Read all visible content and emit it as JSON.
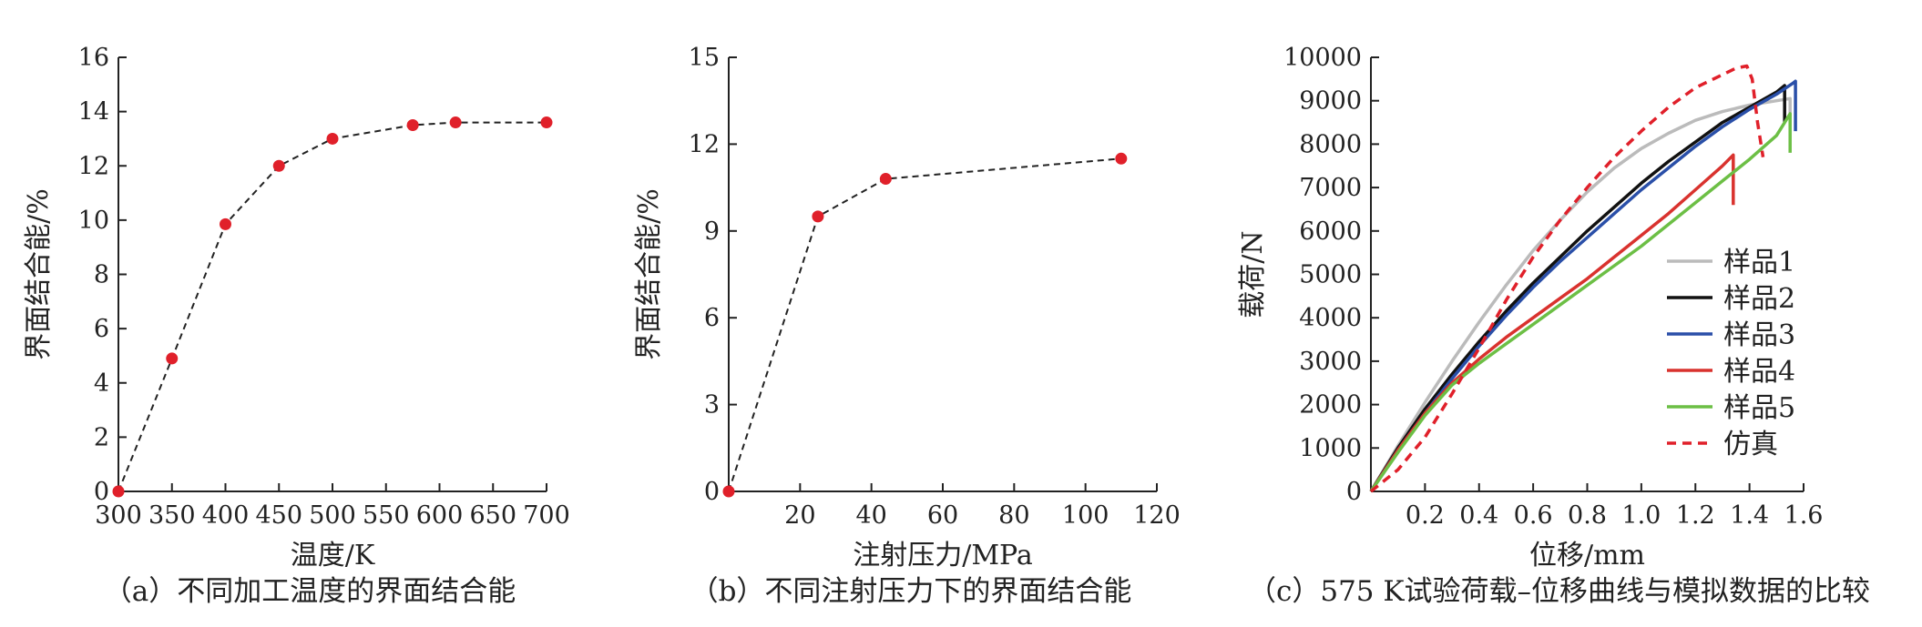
{
  "chart_data": [
    {
      "type": "line",
      "caption": "（a）不同加工温度的界面结合能",
      "xlabel": "温度/K",
      "ylabel": "界面结合能/%",
      "xlim": [
        300,
        700
      ],
      "ylim": [
        0,
        16
      ],
      "xticks": [
        "300",
        "350",
        "400",
        "450",
        "500",
        "550",
        "600",
        "650",
        "700"
      ],
      "yticks": [
        "0",
        "2",
        "4",
        "6",
        "8",
        "10",
        "12",
        "14",
        "16"
      ],
      "grid": false,
      "style": "dashed line with red circular markers",
      "line_color": "#222222",
      "marker_color": "#e0202a",
      "x": [
        300,
        350,
        400,
        450,
        500,
        575,
        615,
        700
      ],
      "y": [
        0,
        4.9,
        9.85,
        12.0,
        13.0,
        13.5,
        13.6,
        13.6
      ]
    },
    {
      "type": "line",
      "caption": "（b）不同注射压力下的界面结合能",
      "xlabel": "注射压力/MPa",
      "ylabel": "界面结合能/%",
      "xlim": [
        0,
        120
      ],
      "ylim": [
        0,
        15
      ],
      "xticks": [
        "20",
        "40",
        "60",
        "80",
        "100",
        "120"
      ],
      "yticks": [
        "0",
        "3",
        "6",
        "9",
        "12",
        "15"
      ],
      "grid": false,
      "style": "dashed line with red circular markers",
      "line_color": "#222222",
      "marker_color": "#e0202a",
      "x": [
        0,
        25,
        44,
        110
      ],
      "y": [
        0,
        9.5,
        10.8,
        11.5
      ]
    },
    {
      "type": "line",
      "caption": "（c）575 K试验荷载–位移曲线与模拟数据的比较",
      "xlabel": "位移/mm",
      "ylabel": "载荷/N",
      "xlim": [
        0,
        1.6
      ],
      "ylim": [
        0,
        10000
      ],
      "xticks": [
        "0.2",
        "0.4",
        "0.6",
        "0.8",
        "1.0",
        "1.2",
        "1.4",
        "1.6"
      ],
      "yticks": [
        "0",
        "1000",
        "2000",
        "3000",
        "4000",
        "5000",
        "6000",
        "7000",
        "8000",
        "9000",
        "10000"
      ],
      "grid": false,
      "legend_position": "right",
      "series": [
        {
          "name": "样品1",
          "color": "#bbbbbb",
          "dash": false,
          "x": [
            0,
            0.1,
            0.2,
            0.3,
            0.4,
            0.5,
            0.6,
            0.7,
            0.8,
            0.9,
            1.0,
            1.1,
            1.2,
            1.3,
            1.4,
            1.5,
            1.55,
            1.55
          ],
          "y": [
            0,
            1050,
            2050,
            3000,
            3900,
            4750,
            5550,
            6250,
            6900,
            7450,
            7900,
            8250,
            8550,
            8750,
            8900,
            9000,
            9050,
            8600
          ]
        },
        {
          "name": "样品2",
          "color": "#111111",
          "dash": false,
          "x": [
            0,
            0.1,
            0.2,
            0.3,
            0.4,
            0.5,
            0.6,
            0.7,
            0.8,
            0.9,
            1.0,
            1.1,
            1.2,
            1.3,
            1.4,
            1.5,
            1.53,
            1.53
          ],
          "y": [
            0,
            1000,
            1900,
            2700,
            3450,
            4150,
            4800,
            5400,
            6000,
            6550,
            7100,
            7600,
            8050,
            8500,
            8850,
            9200,
            9350,
            8500
          ]
        },
        {
          "name": "样品3",
          "color": "#2a4fa8",
          "dash": false,
          "x": [
            0,
            0.1,
            0.2,
            0.3,
            0.4,
            0.5,
            0.6,
            0.7,
            0.8,
            0.9,
            1.0,
            1.1,
            1.2,
            1.3,
            1.4,
            1.5,
            1.56,
            1.57,
            1.57
          ],
          "y": [
            0,
            950,
            1800,
            2600,
            3350,
            4050,
            4700,
            5300,
            5850,
            6400,
            6950,
            7450,
            7950,
            8400,
            8800,
            9150,
            9400,
            9450,
            8300
          ]
        },
        {
          "name": "样品4",
          "color": "#d9322e",
          "dash": false,
          "x": [
            0,
            0.1,
            0.2,
            0.3,
            0.4,
            0.5,
            0.6,
            0.7,
            0.8,
            0.9,
            1.0,
            1.1,
            1.2,
            1.3,
            1.34,
            1.34
          ],
          "y": [
            0,
            950,
            1800,
            2500,
            3050,
            3550,
            4000,
            4450,
            4900,
            5400,
            5900,
            6400,
            6950,
            7500,
            7750,
            6600
          ]
        },
        {
          "name": "样品5",
          "color": "#6cbf45",
          "dash": false,
          "x": [
            0,
            0.1,
            0.2,
            0.3,
            0.4,
            0.5,
            0.6,
            0.7,
            0.8,
            0.9,
            1.0,
            1.1,
            1.2,
            1.3,
            1.4,
            1.5,
            1.55,
            1.55
          ],
          "y": [
            0,
            900,
            1750,
            2450,
            2950,
            3400,
            3850,
            4300,
            4750,
            5200,
            5650,
            6150,
            6650,
            7150,
            7650,
            8200,
            8700,
            7800
          ]
        },
        {
          "name": "仿真",
          "color": "#e0202a",
          "dash": true,
          "x": [
            0,
            0.1,
            0.2,
            0.3,
            0.4,
            0.5,
            0.6,
            0.7,
            0.8,
            0.9,
            1.0,
            1.1,
            1.2,
            1.3,
            1.35,
            1.39,
            1.41,
            1.43,
            1.45
          ],
          "y": [
            0,
            500,
            1250,
            2250,
            3300,
            4400,
            5400,
            6250,
            7000,
            7700,
            8300,
            8850,
            9300,
            9600,
            9750,
            9800,
            9500,
            8500,
            7700
          ]
        }
      ]
    }
  ]
}
